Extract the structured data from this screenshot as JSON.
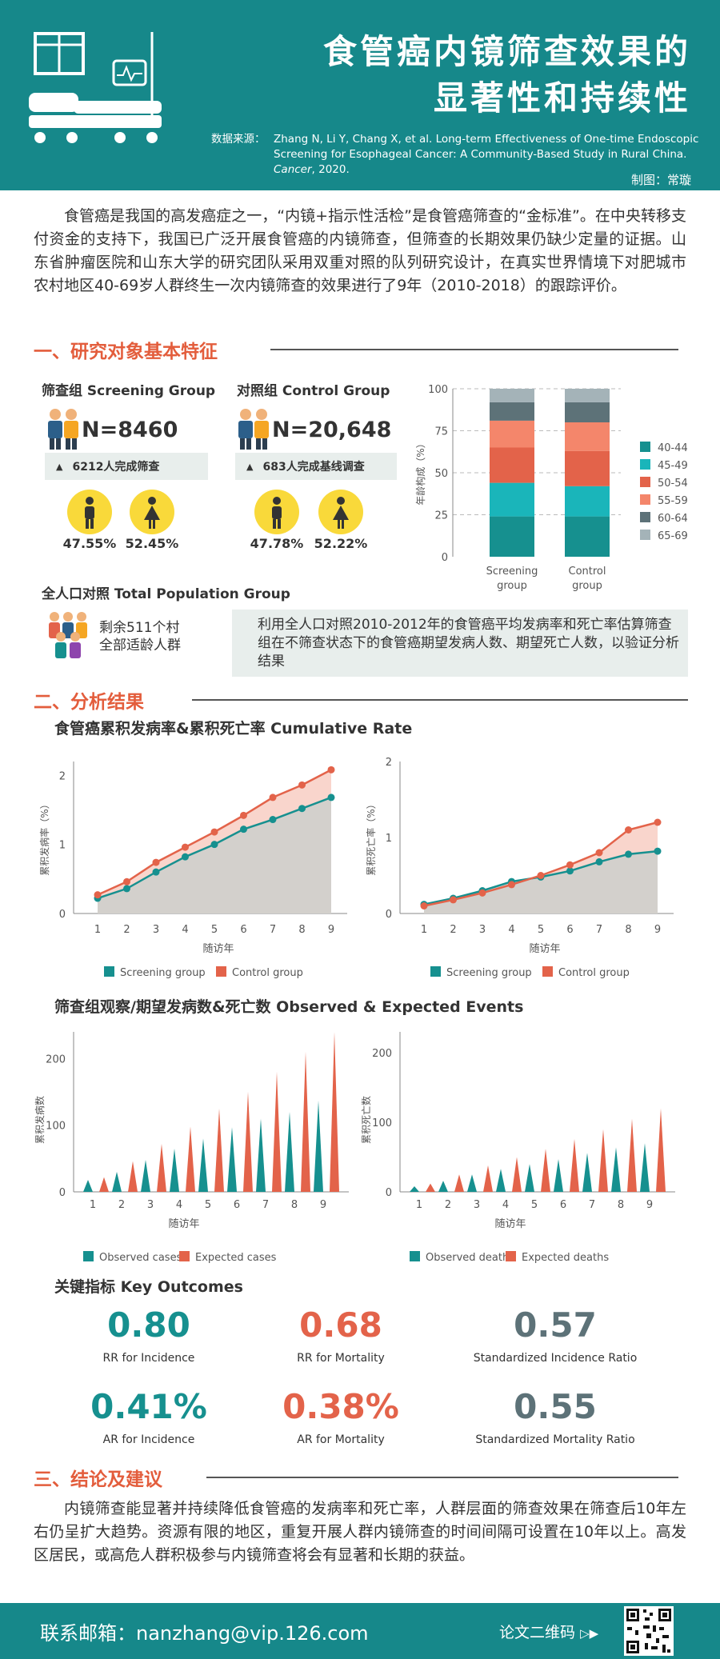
{
  "header": {
    "title_line1": "食管癌内镜筛查效果的",
    "title_line2": "显著性和持续性",
    "source_label": "数据来源：",
    "source_text": "Zhang N, Li Y, Chang X, et al. Long-term Effectiveness of One-time Endoscopic Screening for Esophageal Cancer: A Community-Based Study in Rural China.",
    "source_journal": "Cancer",
    "source_year": ", 2020.",
    "maker": "制图：常璇"
  },
  "intro": "食管癌是我国的高发癌症之一，“内镜+指示性活检”是食管癌筛查的“金标准”。在中央转移支付资金的支持下，我国已广泛开展食管癌的内镜筛查，但筛查的长期效果仍缺少定量的证据。山东省肿瘤医院和山东大学的研究团队采用双重对照的队列研究设计，在真实世界情境下对肥城市农村地区40-69岁人群终生一次内镜筛查的效果进行了9年（2010-2018）的跟踪评价。",
  "section1": {
    "title": "一、研究对象基本特征",
    "screening": {
      "title": "筛查组 Screening Group",
      "n": "N=8460",
      "note": "6212人完成筛查",
      "male_pct": "47.55%",
      "female_pct": "52.45%"
    },
    "control": {
      "title": "对照组 Control Group",
      "n": "N=20,648",
      "note": "683人完成基线调查",
      "male_pct": "47.78%",
      "female_pct": "52.22%"
    },
    "population": {
      "title": "全人口对照 Total Population Group",
      "desc1": "剩余511个村",
      "desc2": "全部适龄人群",
      "note": "利用全人口对照2010-2012年的食管癌平均发病率和死亡率估算筛查组在不筛查状态下的食管癌期望发病人数、期望死亡人数，以验证分析结果"
    }
  },
  "section2": {
    "title": "二、分析结果",
    "cum_title": "食管癌累积发病率&累积死亡率 Cumulative Rate",
    "obs_title": "筛查组观察/期望发病数&死亡数 Observed & Expected Events",
    "kpi_title": "关键指标 Key Outcomes"
  },
  "kpis": [
    {
      "value": "0.80",
      "label": "RR for Incidence",
      "color": "#16908f"
    },
    {
      "value": "0.68",
      "label": "RR for Mortality",
      "color": "#e3634a"
    },
    {
      "value": "0.57",
      "label": "Standardized Incidence Ratio",
      "color": "#5d7278"
    },
    {
      "value": "0.41%",
      "label": "AR for Incidence",
      "color": "#16908f"
    },
    {
      "value": "0.38%",
      "label": "AR for Mortality",
      "color": "#e3634a"
    },
    {
      "value": "0.55",
      "label": "Standardized Mortality Ratio",
      "color": "#5d7278"
    }
  ],
  "section3": {
    "title": "三、结论及建议",
    "text": "内镜筛查能显著并持续降低食管癌的发病率和死亡率，人群层面的筛查效果在筛查后10年左右仍呈扩大趋势。资源有限的地区，重复开展人群内镜筛查的时间间隔可设置在10年以上。高发区居民，或高危人群积极参与内镜筛查将会有显著和长期的获益。"
  },
  "footer": {
    "email": "联系邮箱：nanzhang@vip.126.com",
    "qr_label": "论文二维码"
  },
  "colors": {
    "teal": "#16908f",
    "orange": "#e3634a",
    "header": "#16888a"
  },
  "chart_data": [
    {
      "type": "bar",
      "stacked": true,
      "ylabel": "年龄构成（%）",
      "ylim": [
        0,
        100
      ],
      "yticks": [
        0,
        25,
        50,
        75,
        100
      ],
      "categories": [
        "Screening group",
        "Control group"
      ],
      "series": [
        {
          "name": "40-44",
          "color": "#16908f",
          "values": [
            24,
            24
          ]
        },
        {
          "name": "45-49",
          "color": "#1ab5ba",
          "values": [
            20,
            18
          ]
        },
        {
          "name": "50-54",
          "color": "#e3634a",
          "values": [
            21,
            21
          ]
        },
        {
          "name": "55-59",
          "color": "#f4866b",
          "values": [
            16,
            17
          ]
        },
        {
          "name": "60-64",
          "color": "#5d7278",
          "values": [
            11,
            12
          ]
        },
        {
          "name": "65-69",
          "color": "#a4b3b8",
          "values": [
            8,
            8
          ]
        }
      ],
      "legend": "right"
    },
    {
      "type": "area",
      "ylabel": "累积发病率（%）",
      "xlabel": "随访年",
      "x": [
        1,
        2,
        3,
        4,
        5,
        6,
        7,
        8,
        9
      ],
      "ylim": [
        0,
        2.2
      ],
      "yticks": [
        0,
        1,
        2
      ],
      "series": [
        {
          "name": "Screening group",
          "color": "#16908f",
          "values": [
            0.22,
            0.36,
            0.6,
            0.82,
            1.0,
            1.22,
            1.36,
            1.52,
            1.68
          ]
        },
        {
          "name": "Control group",
          "color": "#e3634a",
          "values": [
            0.27,
            0.46,
            0.74,
            0.96,
            1.18,
            1.42,
            1.68,
            1.86,
            2.08
          ]
        }
      ]
    },
    {
      "type": "area",
      "ylabel": "累积死亡率（%）",
      "xlabel": "随访年",
      "x": [
        1,
        2,
        3,
        4,
        5,
        6,
        7,
        8,
        9
      ],
      "ylim": [
        0,
        2.0
      ],
      "yticks": [
        0,
        1,
        2
      ],
      "series": [
        {
          "name": "Screening group",
          "color": "#16908f",
          "values": [
            0.12,
            0.2,
            0.3,
            0.42,
            0.48,
            0.56,
            0.68,
            0.78,
            0.82
          ]
        },
        {
          "name": "Control group",
          "color": "#e3634a",
          "values": [
            0.1,
            0.18,
            0.27,
            0.38,
            0.5,
            0.64,
            0.8,
            1.1,
            1.2
          ]
        }
      ]
    },
    {
      "type": "bar",
      "ylabel": "累积发病数",
      "xlabel": "随访年",
      "x": [
        1,
        2,
        3,
        4,
        5,
        6,
        7,
        8,
        9
      ],
      "ylim": [
        0,
        240
      ],
      "yticks": [
        0,
        100,
        200
      ],
      "series": [
        {
          "name": "Observed cases",
          "color": "#16908f",
          "values": [
            18,
            30,
            48,
            65,
            80,
            97,
            110,
            120,
            137
          ]
        },
        {
          "name": "Expected cases",
          "color": "#e3634a",
          "values": [
            22,
            46,
            72,
            98,
            125,
            150,
            180,
            210,
            240
          ]
        }
      ]
    },
    {
      "type": "bar",
      "ylabel": "累积死亡数",
      "xlabel": "随访年",
      "x": [
        1,
        2,
        3,
        4,
        5,
        6,
        7,
        8,
        9
      ],
      "ylim": [
        0,
        230
      ],
      "yticks": [
        0,
        100,
        200
      ],
      "series": [
        {
          "name": "Observed deaths",
          "color": "#16908f",
          "values": [
            8,
            16,
            25,
            33,
            40,
            47,
            56,
            64,
            70
          ]
        },
        {
          "name": "Expected deaths",
          "color": "#e3634a",
          "values": [
            12,
            25,
            38,
            50,
            62,
            76,
            90,
            105,
            120
          ]
        }
      ]
    }
  ]
}
